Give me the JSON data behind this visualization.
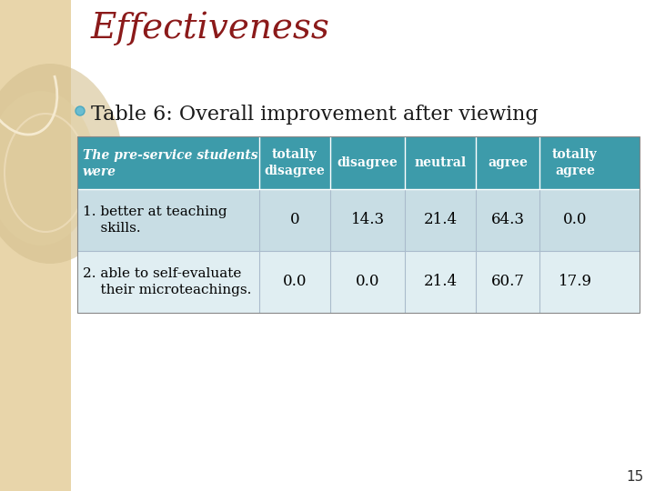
{
  "title": "Effectiveness",
  "subtitle": "Table 6: Overall improvement after viewing",
  "title_color": "#8B1A1A",
  "subtitle_color": "#1a1a1a",
  "header_bg": "#3D9BAA",
  "header_text_color": "#FFFFFF",
  "row1_bg": "#C8DDE4",
  "row2_bg": "#E0EEF2",
  "col_header_line1": [
    "The pre-service students",
    "totally",
    "disagree",
    "neutral",
    "agree",
    "totally"
  ],
  "col_header_line2": [
    "were",
    "disagree",
    "",
    "",
    "",
    "agree"
  ],
  "row1_label_line1": "1. better at teaching",
  "row1_label_line2": "    skills.",
  "row2_label_line1": "2. able to self-evaluate",
  "row2_label_line2": "    their microteachings.",
  "row1_values": [
    "0",
    "14.3",
    "21.4",
    "64.3",
    "0.0"
  ],
  "row2_values": [
    "0.0",
    "0.0",
    "21.4",
    "60.7",
    "17.9"
  ],
  "bg_color": "#FFFFFF",
  "page_number": "15",
  "left_panel_color": "#E8D5AA"
}
